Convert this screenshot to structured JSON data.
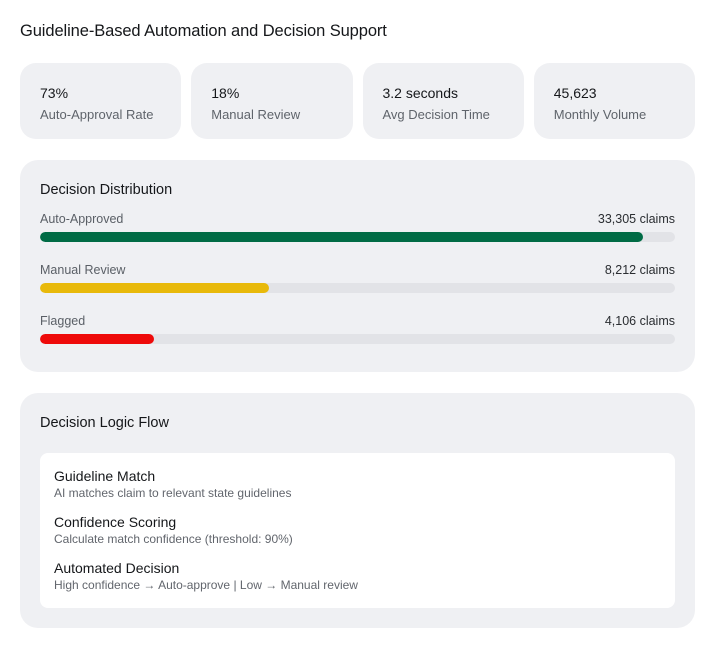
{
  "page": {
    "title": "Guideline-Based Automation and Decision Support"
  },
  "stats": [
    {
      "value": "73%",
      "label": "Auto-Approval Rate"
    },
    {
      "value": "18%",
      "label": "Manual Review"
    },
    {
      "value": "3.2 seconds",
      "label": "Avg Decision Time"
    },
    {
      "value": "45,623",
      "label": "Monthly Volume"
    }
  ],
  "distribution": {
    "title": "Decision Distribution",
    "rows": [
      {
        "label": "Auto-Approved",
        "count": "33,305 claims",
        "fill_percent": 95,
        "color": "#006b45"
      },
      {
        "label": "Manual Review",
        "count": "8,212 claims",
        "fill_percent": 36,
        "color": "#e8b90a"
      },
      {
        "label": "Flagged",
        "count": "4,106 claims",
        "fill_percent": 18,
        "color": "#ee0a0a"
      }
    ],
    "track_color": "#e2e3e7"
  },
  "flow": {
    "title": "Decision Logic Flow",
    "steps": [
      {
        "title": "Guideline Match",
        "description": "AI matches claim to relevant state guidelines"
      },
      {
        "title": "Confidence Scoring",
        "description": "Calculate match confidence (threshold: 90%)"
      },
      {
        "title": "Automated Decision",
        "description": "High confidence → Auto-approve | Low → Manual review"
      }
    ]
  }
}
